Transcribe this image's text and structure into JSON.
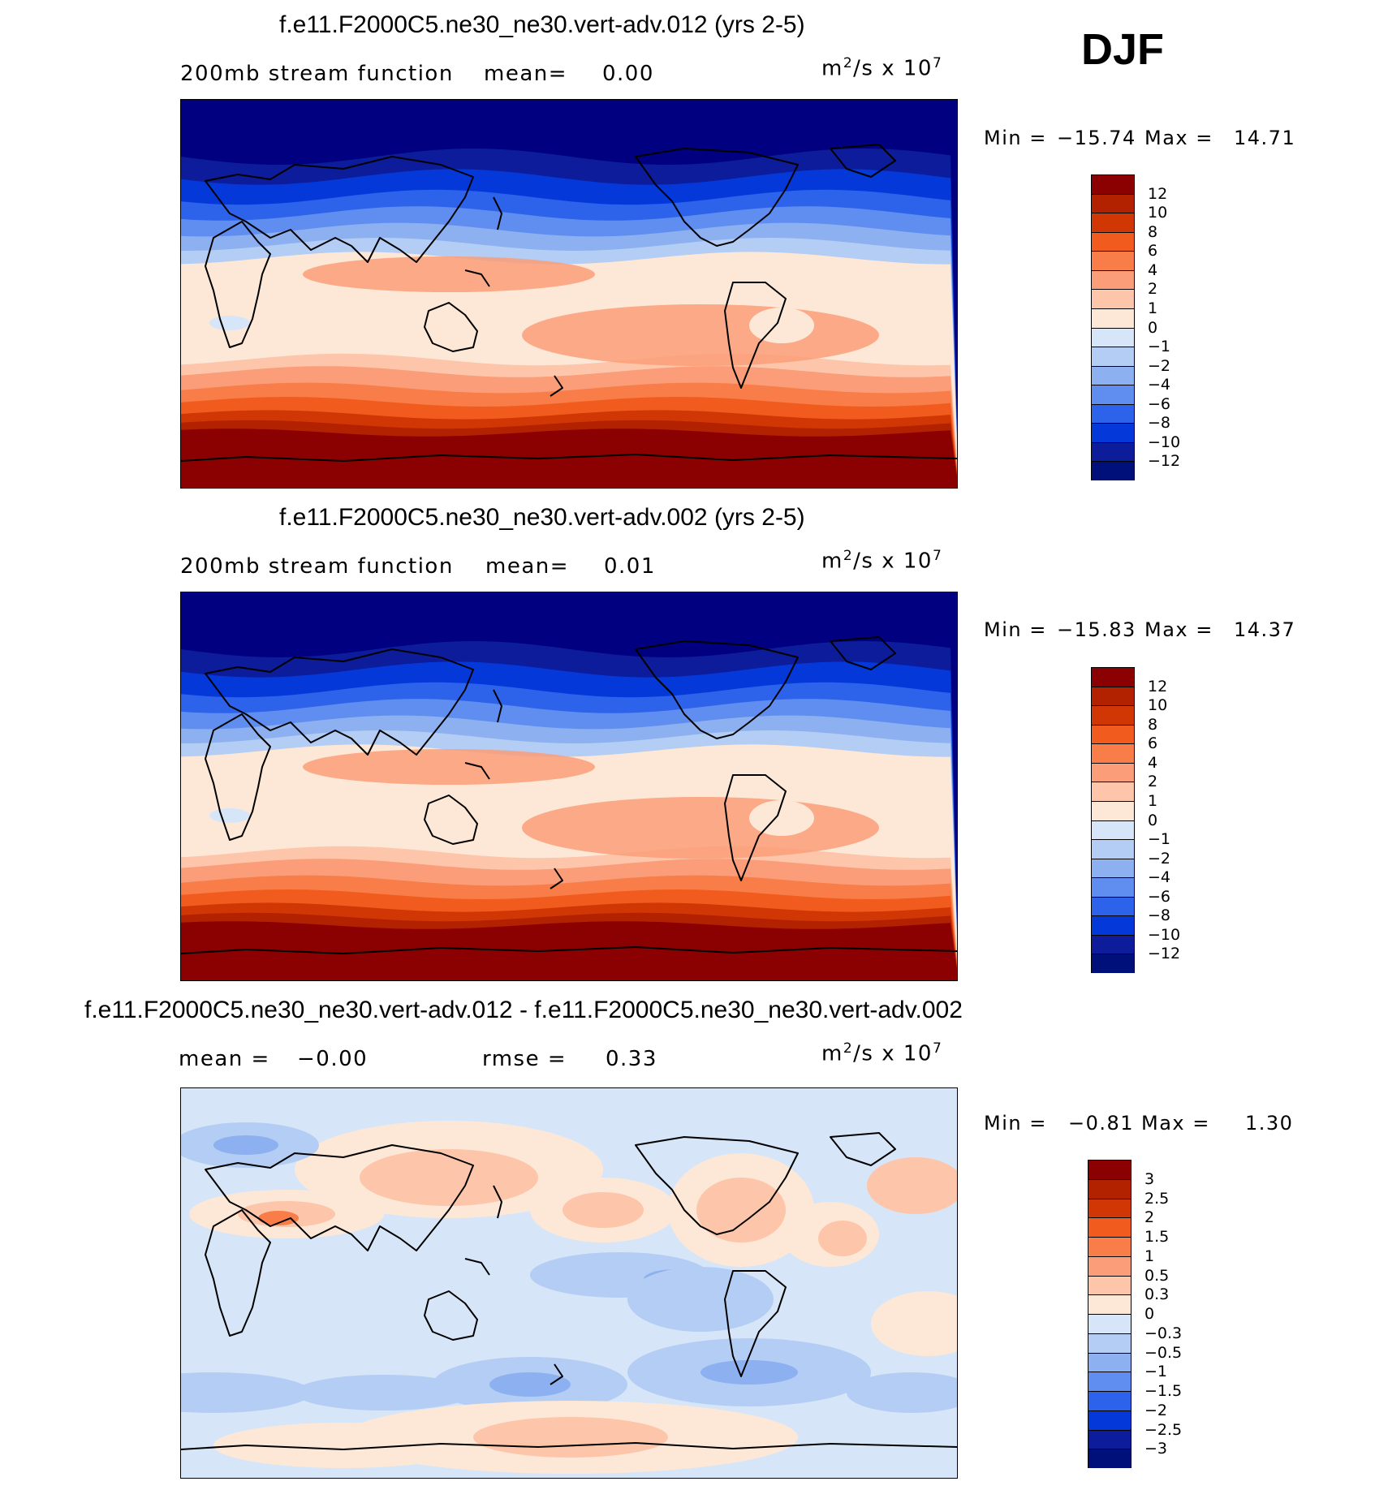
{
  "season": "DJF",
  "panels": [
    {
      "title": "f.e11.F2000C5.ne30_ne30.vert-adv.012 (yrs 2-5)",
      "subtitle_left": "200mb stream function",
      "stat1_label": "mean=",
      "stat1_value": "0.00",
      "units_base": "m",
      "units_exp1": "2",
      "units_mid": "/s x 10",
      "units_exp2": "7",
      "min_label": "Min =",
      "min_value": "−15.74",
      "max_label": "Max =",
      "max_value": "14.71",
      "colorbar_labels": [
        "12",
        "10",
        "8",
        "6",
        "4",
        "2",
        "1",
        "0",
        "−1",
        "−2",
        "−4",
        "−6",
        "−8",
        "−10",
        "−12"
      ],
      "colorbar_colors": [
        "#8b0000",
        "#b22200",
        "#d13705",
        "#f15c1e",
        "#f87d48",
        "#fa9d78",
        "#fdc6aa",
        "#fde8d7",
        "#d6e6f8",
        "#b3cdf4",
        "#8cb0f0",
        "#5f8ef0",
        "#2d62ea",
        "#0538d8",
        "#0c1c9a",
        "#00107a"
      ],
      "map_colors": [
        "#0c1c9a",
        "#0538d8",
        "#2d62ea",
        "#5f8ef0",
        "#8cb0f0",
        "#b3cdf4",
        "#fde8d7",
        "#fdc6aa",
        "#fa9d78",
        "#f87d48",
        "#f15c1e",
        "#d13705",
        "#b22200",
        "#8b0000"
      ]
    },
    {
      "title": "f.e11.F2000C5.ne30_ne30.vert-adv.002 (yrs 2-5)",
      "subtitle_left": "200mb stream function",
      "stat1_label": "mean=",
      "stat1_value": "0.01",
      "units_base": "m",
      "units_exp1": "2",
      "units_mid": "/s x 10",
      "units_exp2": "7",
      "min_label": "Min =",
      "min_value": "−15.83",
      "max_label": "Max =",
      "max_value": "14.37",
      "colorbar_labels": [
        "12",
        "10",
        "8",
        "6",
        "4",
        "2",
        "1",
        "0",
        "−1",
        "−2",
        "−4",
        "−6",
        "−8",
        "−10",
        "−12"
      ],
      "colorbar_colors": [
        "#8b0000",
        "#b22200",
        "#d13705",
        "#f15c1e",
        "#f87d48",
        "#fa9d78",
        "#fdc6aa",
        "#fde8d7",
        "#d6e6f8",
        "#b3cdf4",
        "#8cb0f0",
        "#5f8ef0",
        "#2d62ea",
        "#0538d8",
        "#0c1c9a",
        "#00107a"
      ],
      "map_colors": [
        "#0c1c9a",
        "#0538d8",
        "#2d62ea",
        "#5f8ef0",
        "#8cb0f0",
        "#b3cdf4",
        "#fde8d7",
        "#fdc6aa",
        "#fa9d78",
        "#f87d48",
        "#f15c1e",
        "#d13705",
        "#b22200",
        "#8b0000"
      ]
    },
    {
      "title": "f.e11.F2000C5.ne30_ne30.vert-adv.012 - f.e11.F2000C5.ne30_ne30.vert-adv.002",
      "subtitle_left": "mean =",
      "stat0_value": "−0.00",
      "stat1_label": "rmse =",
      "stat1_value": "0.33",
      "units_base": "m",
      "units_exp1": "2",
      "units_mid": "/s x 10",
      "units_exp2": "7",
      "min_label": "Min =",
      "min_value": "−0.81",
      "max_label": "Max =",
      "max_value": "1.30",
      "colorbar_labels": [
        "3",
        "2.5",
        "2",
        "1.5",
        "1",
        "0.5",
        "0.3",
        "0",
        "−0.3",
        "−0.5",
        "−1",
        "−1.5",
        "−2",
        "−2.5",
        "−3"
      ],
      "colorbar_colors": [
        "#8b0000",
        "#b22200",
        "#d13705",
        "#f15c1e",
        "#f87d48",
        "#fa9d78",
        "#fdc6aa",
        "#fde8d7",
        "#d6e6f8",
        "#b3cdf4",
        "#8cb0f0",
        "#5f8ef0",
        "#2d62ea",
        "#0538d8",
        "#0c1c9a",
        "#00107a"
      ],
      "map_colors": [
        "#d6e6f8",
        "#fde8d7",
        "#fdc6aa",
        "#b3cdf4",
        "#f87d48",
        "#8cb0f0"
      ]
    }
  ]
}
